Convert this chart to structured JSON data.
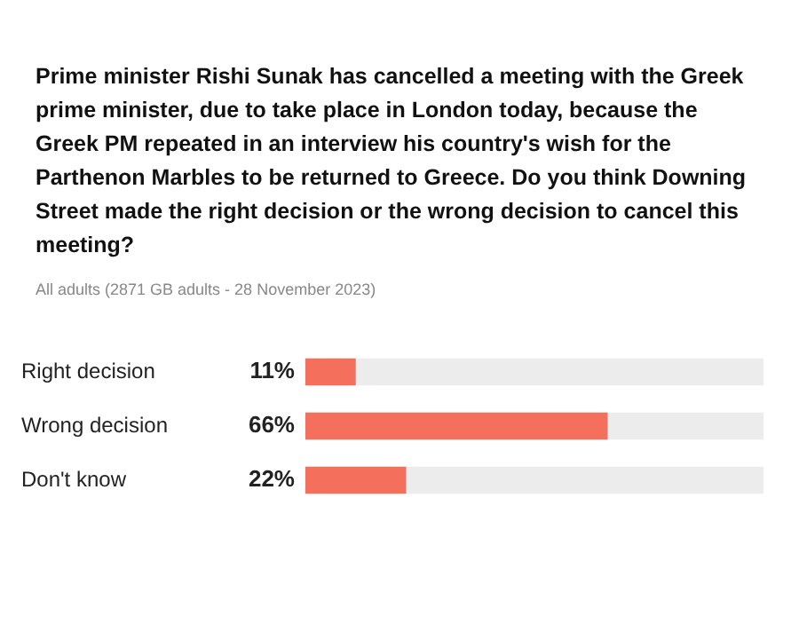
{
  "chart_data": {
    "type": "bar",
    "orientation": "horizontal",
    "title": "Prime minister Rishi Sunak has cancelled a meeting with the Greek prime minister, due to take place in London today, because the Greek PM repeated in an interview his country's wish for the Parthenon Marbles to be returned to Greece. Do you think Downing Street made the right decision or the wrong decision to cancel this meeting?",
    "subtitle": "All adults (2871 GB adults - 28 November 2023)",
    "categories": [
      "Right decision",
      "Wrong decision",
      "Don't know"
    ],
    "values": [
      11,
      66,
      22
    ],
    "value_labels": [
      "11%",
      "66%",
      "22%"
    ],
    "color": "#f4705d",
    "xlim": [
      0,
      100
    ],
    "tick_labels": "y",
    "grid": false,
    "legend": false
  }
}
